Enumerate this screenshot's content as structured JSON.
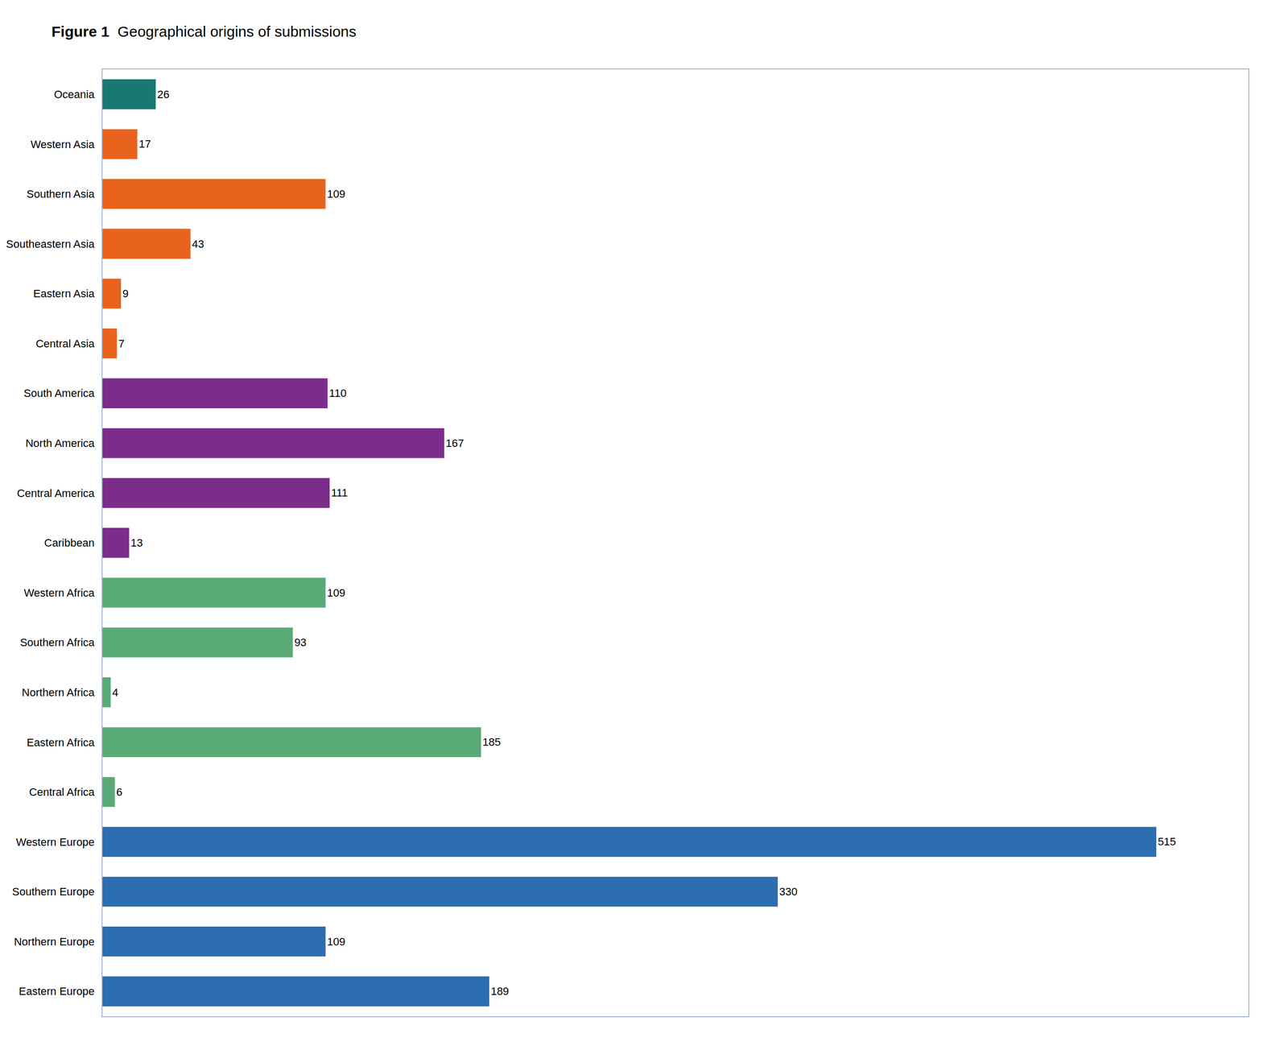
{
  "chart_data": {
    "type": "bar",
    "orientation": "horizontal",
    "title": "Figure 1",
    "subtitle": "Geographical origins of submissions",
    "categories": [
      "Oceania",
      "Western Asia",
      "Southern Asia",
      "Southeastern Asia",
      "Eastern Asia",
      "Central Asia",
      "South America",
      "North America",
      "Central America",
      "Caribbean",
      "Western Africa",
      "Southern Africa",
      "Northern Africa",
      "Eastern Africa",
      "Central Africa",
      "Western Europe",
      "Southern Europe",
      "Northern Europe",
      "Eastern Europe"
    ],
    "values": [
      26,
      17,
      109,
      43,
      9,
      7,
      110,
      167,
      111,
      13,
      109,
      93,
      4,
      185,
      6,
      515,
      330,
      109,
      189
    ],
    "colors": [
      "#1a7872",
      "#e8641e",
      "#e8641e",
      "#e8641e",
      "#e8641e",
      "#e8641e",
      "#7b2d8b",
      "#7b2d8b",
      "#7b2d8b",
      "#7b2d8b",
      "#5aaa78",
      "#5aaa78",
      "#5aaa78",
      "#5aaa78",
      "#5aaa78",
      "#2c6eaf",
      "#2c6eaf",
      "#2c6eaf",
      "#2c6eaf"
    ],
    "xlim": [
      0,
      560
    ],
    "data_labels": true,
    "tick_labels": "y",
    "grid": false
  }
}
